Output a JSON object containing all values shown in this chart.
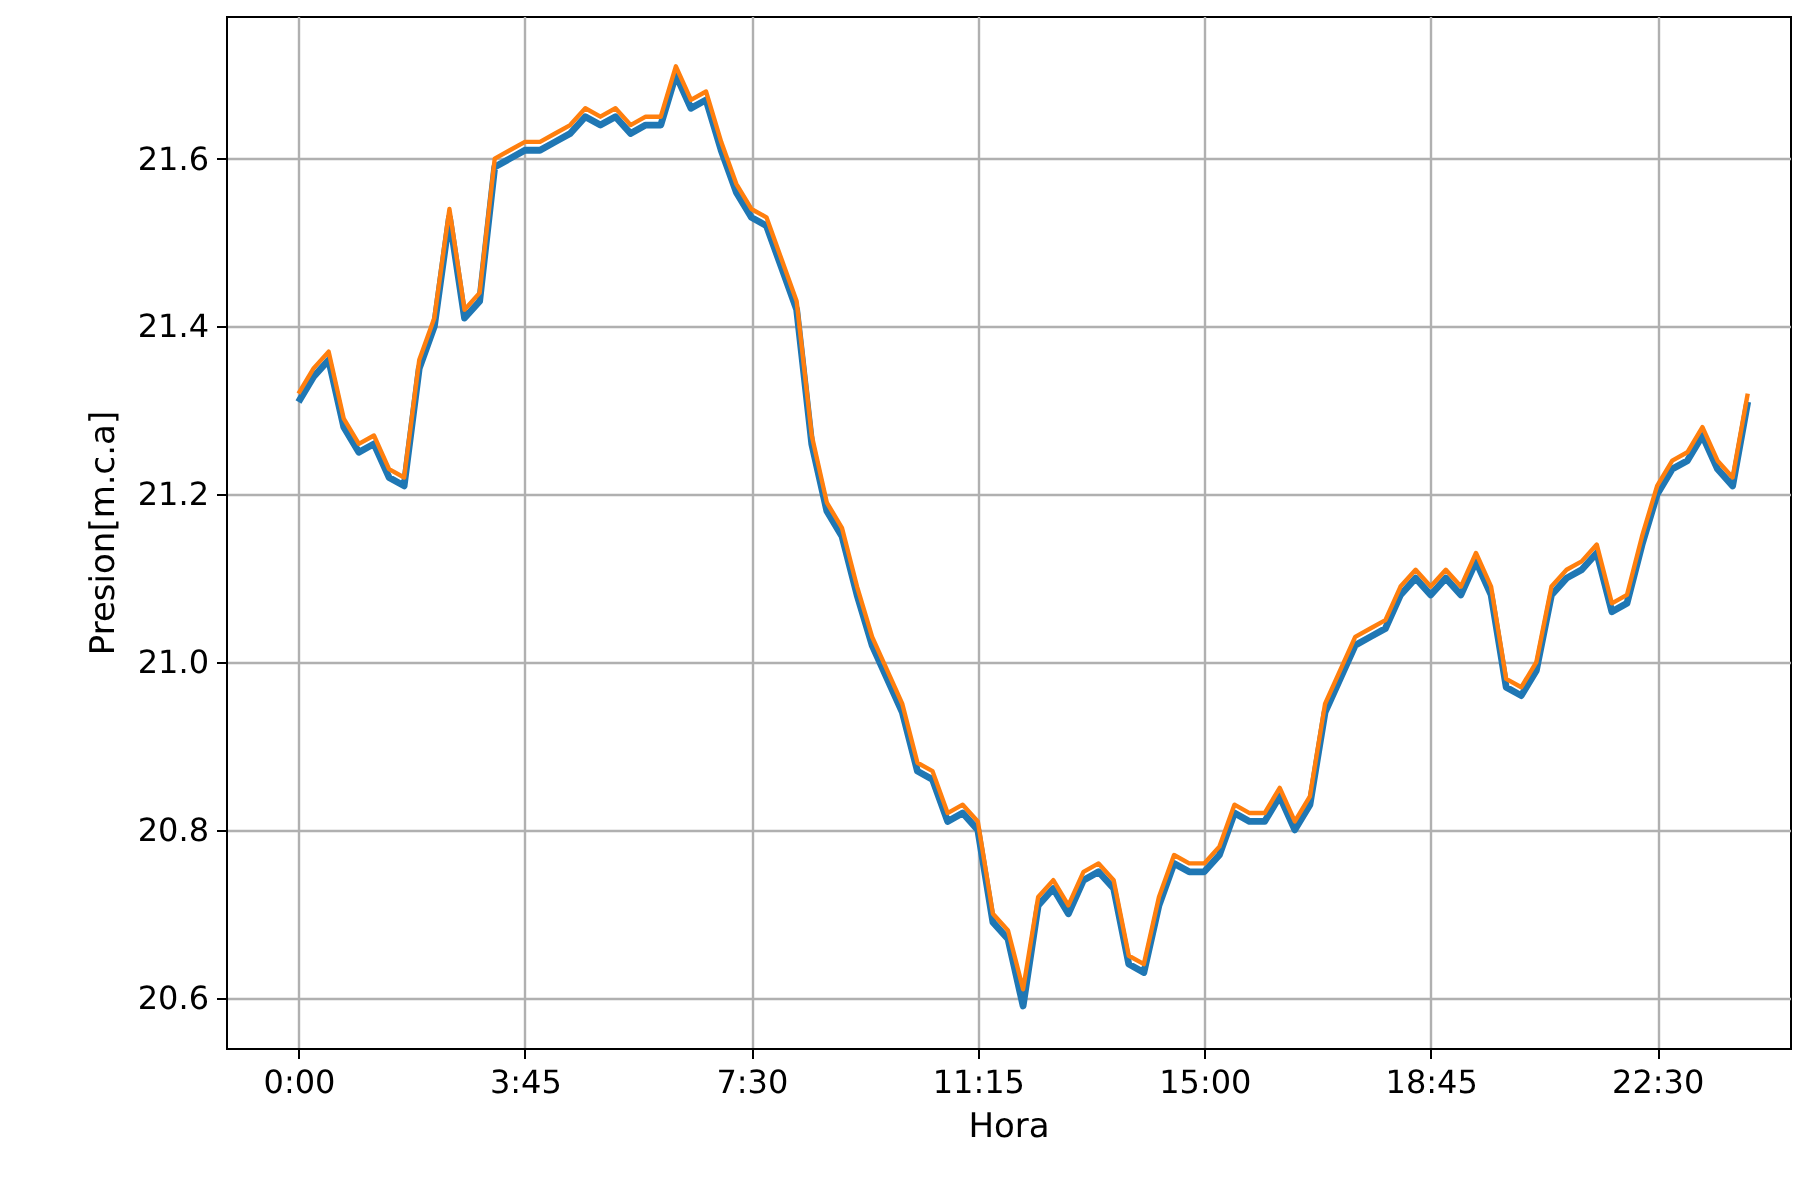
{
  "chart_data": {
    "type": "line",
    "xlabel": "Hora",
    "ylabel": "Presion[m.c.a]",
    "x": [
      0,
      0.25,
      0.5,
      0.75,
      1,
      1.25,
      1.5,
      1.75,
      2,
      2.25,
      2.5,
      2.75,
      3,
      3.25,
      3.5,
      3.75,
      4,
      4.25,
      4.5,
      4.75,
      5,
      5.25,
      5.5,
      5.75,
      6,
      6.25,
      6.5,
      6.75,
      7,
      7.25,
      7.5,
      7.75,
      8,
      8.25,
      8.5,
      8.75,
      9,
      9.25,
      9.5,
      9.75,
      10,
      10.25,
      10.5,
      10.75,
      11,
      11.25,
      11.5,
      11.75,
      12,
      12.25,
      12.5,
      12.75,
      13,
      13.25,
      13.5,
      13.75,
      14,
      14.25,
      14.5,
      14.75,
      15,
      15.25,
      15.5,
      15.75,
      16,
      16.25,
      16.5,
      16.75,
      17,
      17.25,
      17.5,
      17.75,
      18,
      18.25,
      18.5,
      18.75,
      19,
      19.25,
      19.5,
      19.75,
      20,
      20.25,
      20.5,
      20.75,
      21,
      21.25,
      21.5,
      21.75,
      22,
      22.25,
      22.5,
      22.75,
      23,
      23.25,
      23.5,
      23.75,
      24
    ],
    "series": [
      {
        "color": "#1f77b4",
        "values": [
          21.31,
          21.34,
          21.36,
          21.28,
          21.25,
          21.26,
          21.22,
          21.21,
          21.35,
          21.4,
          21.53,
          21.41,
          21.43,
          21.59,
          21.6,
          21.61,
          21.61,
          21.62,
          21.63,
          21.65,
          21.64,
          21.65,
          21.63,
          21.64,
          21.64,
          21.7,
          21.66,
          21.67,
          21.61,
          21.56,
          21.53,
          21.52,
          21.47,
          21.42,
          21.26,
          21.18,
          21.15,
          21.08,
          21.02,
          20.98,
          20.94,
          20.87,
          20.86,
          20.81,
          20.82,
          20.8,
          20.69,
          20.67,
          20.59,
          20.71,
          20.73,
          20.7,
          20.74,
          20.75,
          20.73,
          20.64,
          20.63,
          20.71,
          20.76,
          20.75,
          20.75,
          20.77,
          20.82,
          20.81,
          20.81,
          20.84,
          20.8,
          20.83,
          20.94,
          20.98,
          21.02,
          21.03,
          21.04,
          21.08,
          21.1,
          21.08,
          21.1,
          21.08,
          21.12,
          21.08,
          20.97,
          20.96,
          20.99,
          21.08,
          21.1,
          21.11,
          21.13,
          21.06,
          21.07,
          21.14,
          21.2,
          21.23,
          21.24,
          21.27,
          21.23,
          21.21,
          21.31
        ]
      },
      {
        "color": "#ff7f0e",
        "values": [
          21.32,
          21.35,
          21.37,
          21.29,
          21.26,
          21.27,
          21.23,
          21.22,
          21.36,
          21.41,
          21.54,
          21.42,
          21.44,
          21.6,
          21.61,
          21.62,
          21.62,
          21.63,
          21.64,
          21.66,
          21.65,
          21.66,
          21.64,
          21.65,
          21.65,
          21.71,
          21.67,
          21.68,
          21.62,
          21.57,
          21.54,
          21.53,
          21.48,
          21.43,
          21.27,
          21.19,
          21.16,
          21.09,
          21.03,
          20.99,
          20.95,
          20.88,
          20.87,
          20.82,
          20.83,
          20.81,
          20.7,
          20.68,
          20.61,
          20.72,
          20.74,
          20.71,
          20.75,
          20.76,
          20.74,
          20.65,
          20.64,
          20.72,
          20.77,
          20.76,
          20.76,
          20.78,
          20.83,
          20.82,
          20.82,
          20.85,
          20.81,
          20.84,
          20.95,
          20.99,
          21.03,
          21.04,
          21.05,
          21.09,
          21.11,
          21.09,
          21.11,
          21.09,
          21.13,
          21.09,
          20.98,
          20.97,
          21.0,
          21.09,
          21.11,
          21.12,
          21.14,
          21.07,
          21.08,
          21.15,
          21.21,
          21.24,
          21.25,
          21.28,
          21.24,
          21.22,
          21.32
        ]
      }
    ],
    "xlim": [
      -1.2,
      24.7
    ],
    "xticks": [
      {
        "value": 0,
        "label": "0:00"
      },
      {
        "value": 3.75,
        "label": "3:45"
      },
      {
        "value": 7.5,
        "label": "7:30"
      },
      {
        "value": 11.25,
        "label": "11:15"
      },
      {
        "value": 15,
        "label": "15:00"
      },
      {
        "value": 18.75,
        "label": "18:45"
      },
      {
        "value": 22.5,
        "label": "22:30"
      }
    ],
    "ylim": [
      20.54,
      21.77
    ],
    "yticks": [
      {
        "value": 20.6,
        "label": "20.6"
      },
      {
        "value": 20.8,
        "label": "20.8"
      },
      {
        "value": 21.0,
        "label": "21.0"
      },
      {
        "value": 21.2,
        "label": "21.2"
      },
      {
        "value": 21.4,
        "label": "21.4"
      },
      {
        "value": 21.6,
        "label": "21.6"
      }
    ],
    "grid": true,
    "marker": "none",
    "line_style": "solid"
  }
}
